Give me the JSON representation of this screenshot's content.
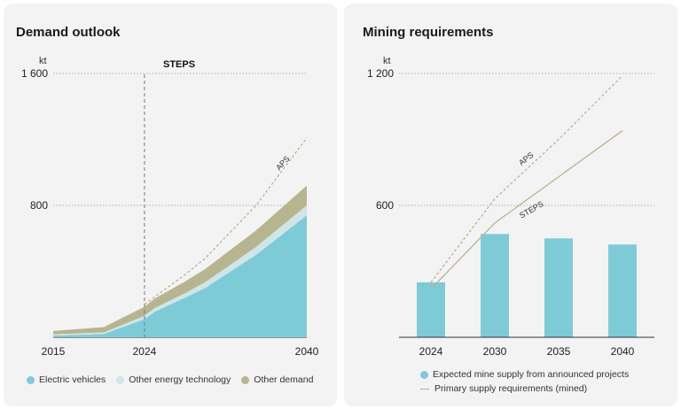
{
  "colors": {
    "ev": "#7ecbd8",
    "other_energy": "#cfe5e8",
    "other_demand": "#b6b58f",
    "bar": "#7ecbd8",
    "steps_line": "#b6b58f",
    "aps_line": "#b6b58f"
  },
  "chart_data": [
    {
      "type": "area",
      "title": "Demand outlook",
      "unit": "kt",
      "scenario_label": "STEPS",
      "scenario_divider_x": 2024,
      "x_ticks": [
        "2015",
        "2024",
        "2040"
      ],
      "y_ticks": [
        "800",
        "1 600"
      ],
      "ylim": [
        0,
        1600
      ],
      "xlim": [
        2015,
        2040
      ],
      "x": [
        2015,
        2020,
        2024,
        2025,
        2028,
        2030,
        2035,
        2040
      ],
      "series": [
        {
          "name": "Electric vehicles",
          "values": [
            10,
            20,
            110,
            155,
            240,
            300,
            500,
            740
          ]
        },
        {
          "name": "Other energy technology",
          "values": [
            8,
            10,
            20,
            22,
            28,
            35,
            48,
            60
          ]
        },
        {
          "name": "Other demand",
          "values": [
            20,
            32,
            55,
            58,
            70,
            80,
            100,
            120
          ]
        }
      ],
      "aps_line": {
        "label": "APS",
        "x": [
          2024,
          2028,
          2030,
          2035,
          2040
        ],
        "values": [
          200,
          380,
          480,
          800,
          1210
        ]
      },
      "legend": [
        "Electric vehicles",
        "Other energy technology",
        "Other demand"
      ]
    },
    {
      "type": "bar",
      "title": "Mining requirements",
      "unit": "kt",
      "categories": [
        "2024",
        "2030",
        "2035",
        "2040"
      ],
      "y_ticks": [
        "600",
        "1 200"
      ],
      "ylim": [
        0,
        1200
      ],
      "bar_values": [
        250,
        470,
        450,
        422
      ],
      "bar_series_name": "Expected mine supply from announced projects",
      "lines": [
        {
          "name": "APS",
          "values": [
            250,
            630,
            900,
            1190
          ]
        },
        {
          "name": "STEPS",
          "values": [
            220,
            520,
            730,
            940
          ]
        }
      ],
      "line_legend": "Primary supply requirements (mined)"
    }
  ]
}
